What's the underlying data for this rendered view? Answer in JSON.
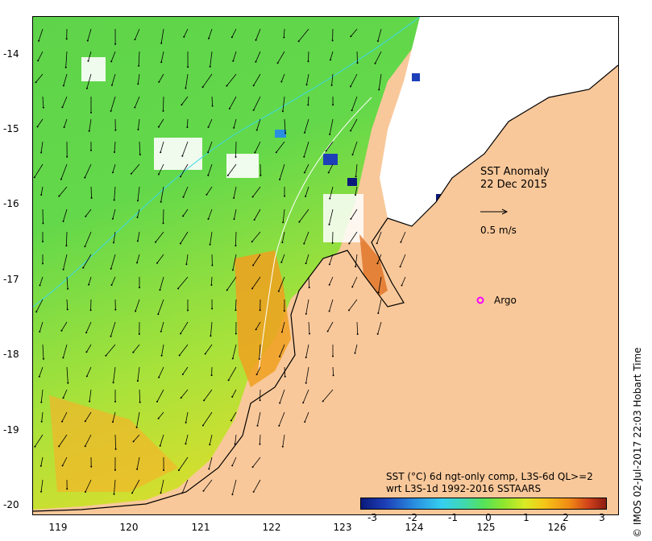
{
  "map": {
    "title": "SST Anomaly",
    "date": "22 Dec 2015",
    "vector_scale_label": "0.5 m/s",
    "marker_label": "Argo",
    "caption_line1": "SST (°C) 6d ngt-only comp, L3S-6d QL>=2",
    "caption_line2": "wrt L3S-1d 1992-2016 SSTAARS",
    "credit": "© IMOS 02-Jul-2017 22:03 Hobart Time",
    "lat_ticks": [
      "-14",
      "-15",
      "-16",
      "-17",
      "-18",
      "-19",
      "-20"
    ],
    "lon_ticks": [
      "119",
      "120",
      "121",
      "122",
      "123",
      "124",
      "125",
      "126"
    ],
    "legend_ticks": [
      "-3",
      "-2",
      "-1",
      "0",
      "1",
      "2",
      "3"
    ],
    "colors": {
      "land": "#f9c89a",
      "marker": "#ff00ff"
    }
  }
}
